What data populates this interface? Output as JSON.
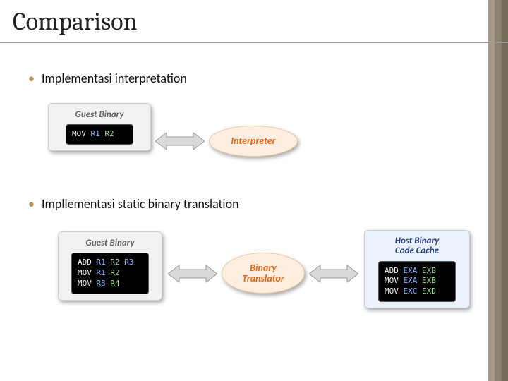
{
  "title": "Comparison",
  "bullets": {
    "b1": "Implementasi interpretation",
    "b2": "Impllementasi static binary translation"
  },
  "stripes": [
    "#a39a8a",
    "#8b8270",
    "#746b58"
  ],
  "guest1": {
    "title": "Guest Binary",
    "bg": "#f2f2f2",
    "title_color": "#5f5f5f",
    "code": "MOV R1 R2",
    "code_html": "<span class='c3'>MOV</span> <span class='c1'>R1</span> <span class='c2'>R2</span>"
  },
  "guest2": {
    "title": "Guest Binary",
    "bg": "#f2f2f2",
    "title_color": "#5f5f5f",
    "code": "ADD R1 R2 R3\nMOV R1 R2\nMOV R3 R4",
    "code_html": "<span class='c3'>ADD</span> <span class='c1'>R1</span> <span class='c2'>R2</span> <span class='c1'>R3</span>\n<span class='c3'>MOV</span> <span class='c1'>R1</span> <span class='c2'>R2</span>\n<span class='c3'>MOV</span> <span class='c1'>R3</span> <span class='c2'>R4</span>"
  },
  "interpreter": {
    "label": "Interpreter",
    "bg": "#fdeee0",
    "border": "#e8c9a0",
    "text_color": "#d96b1f"
  },
  "translator": {
    "label": "Binary\nTranslator",
    "bg": "#fdeee0",
    "border": "#e8c9a0",
    "text_color": "#d96b1f"
  },
  "host": {
    "title": "Host Binary\nCode Cache",
    "bg": "#eaf1fb",
    "title_color": "#2a3f7a",
    "code": "ADD EXA EXB\nMOV EXA EXB\nMOV EXC EXD",
    "code_html": "<span class='c3'>ADD</span> <span class='c1'>EXA</span> <span class='c2'>EXB</span>\n<span class='c3'>MOV</span> <span class='c1'>EXA</span> <span class='c2'>EXB</span>\n<span class='c3'>MOV</span> <span class='c1'>EXC</span> <span class='c2'>EXD</span>"
  },
  "arrow": {
    "fill": "#d9d9d9",
    "stroke": "#9a9a9a"
  }
}
